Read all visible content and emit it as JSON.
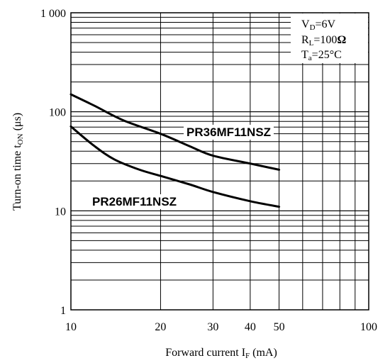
{
  "chart_data": {
    "type": "line",
    "xscale": "log",
    "yscale": "log",
    "xlim": [
      10,
      100
    ],
    "ylim": [
      1,
      1000
    ],
    "xticks": [
      {
        "value": 10,
        "label": "10"
      },
      {
        "value": 20,
        "label": "20"
      },
      {
        "value": 30,
        "label": "30"
      },
      {
        "value": 40,
        "label": "40"
      },
      {
        "value": 50,
        "label": "50"
      },
      {
        "value": 100,
        "label": "100"
      }
    ],
    "yticks": [
      {
        "value": 1,
        "label": "1"
      },
      {
        "value": 10,
        "label": "10"
      },
      {
        "value": 100,
        "label": "100"
      },
      {
        "value": 1000,
        "label": "1 000"
      }
    ],
    "xlabel": {
      "main": "Forward current I",
      "sub": "F",
      "unit": " (mA)"
    },
    "ylabel": {
      "main": "Turn-on time t",
      "sub": "ON",
      "unit": " (μs)"
    },
    "grid": true,
    "conditions": [
      {
        "main": "V",
        "sub": "D",
        "rest": "=6V"
      },
      {
        "main": "R",
        "sub": "L",
        "rest": "=100",
        "bold": "Ω"
      },
      {
        "main": "T",
        "sub": "a",
        "rest": "=25°C"
      }
    ],
    "series": [
      {
        "name": "PR36MF11NSZ",
        "points": [
          [
            10,
            150
          ],
          [
            12,
            115
          ],
          [
            15,
            82
          ],
          [
            20,
            60
          ],
          [
            25,
            45
          ],
          [
            30,
            36
          ],
          [
            40,
            30
          ],
          [
            50,
            26
          ]
        ]
      },
      {
        "name": "PR26MF11NSZ",
        "points": [
          [
            10,
            71
          ],
          [
            12,
            45
          ],
          [
            14,
            33
          ],
          [
            17,
            26
          ],
          [
            20,
            22.5
          ],
          [
            25,
            18.5
          ],
          [
            30,
            15.5
          ],
          [
            40,
            12.5
          ],
          [
            50,
            11
          ]
        ]
      }
    ]
  }
}
